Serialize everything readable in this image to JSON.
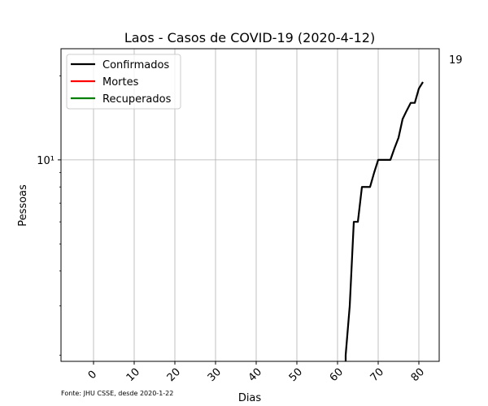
{
  "chart_data": {
    "type": "line",
    "title": "Laos - Casos de COVID-19 (2020-4-12)",
    "xlabel": "Dias",
    "ylabel": "Pessoas",
    "yscale": "log",
    "xlim": [
      -8,
      85
    ],
    "ylim": [
      1.9,
      25
    ],
    "x_ticks": [
      0,
      10,
      20,
      30,
      40,
      50,
      60,
      70,
      80
    ],
    "y_ticks": [
      {
        "value": 10,
        "label": "10¹"
      }
    ],
    "grid": true,
    "legend_position": "top-left",
    "series": [
      {
        "name": "Confirmados",
        "color": "#000000",
        "x": [
          62,
          62,
          63,
          64,
          65,
          66,
          67,
          68,
          69,
          70,
          71,
          72,
          73,
          74,
          75,
          76,
          77,
          78,
          79,
          80,
          81
        ],
        "y": [
          1.8,
          2,
          3,
          6,
          6,
          8,
          8,
          8,
          9,
          10,
          10,
          10,
          10,
          11,
          12,
          14,
          15,
          16,
          16,
          18,
          19
        ]
      },
      {
        "name": "Mortes",
        "color": "#ff0000",
        "x": [],
        "y": []
      },
      {
        "name": "Recuperados",
        "color": "#008000",
        "x": [],
        "y": []
      }
    ],
    "annotation": {
      "text": "19",
      "x": 81,
      "y": 19
    },
    "source_note": "Fonte: JHU CSSE, desde 2020-1-22"
  }
}
